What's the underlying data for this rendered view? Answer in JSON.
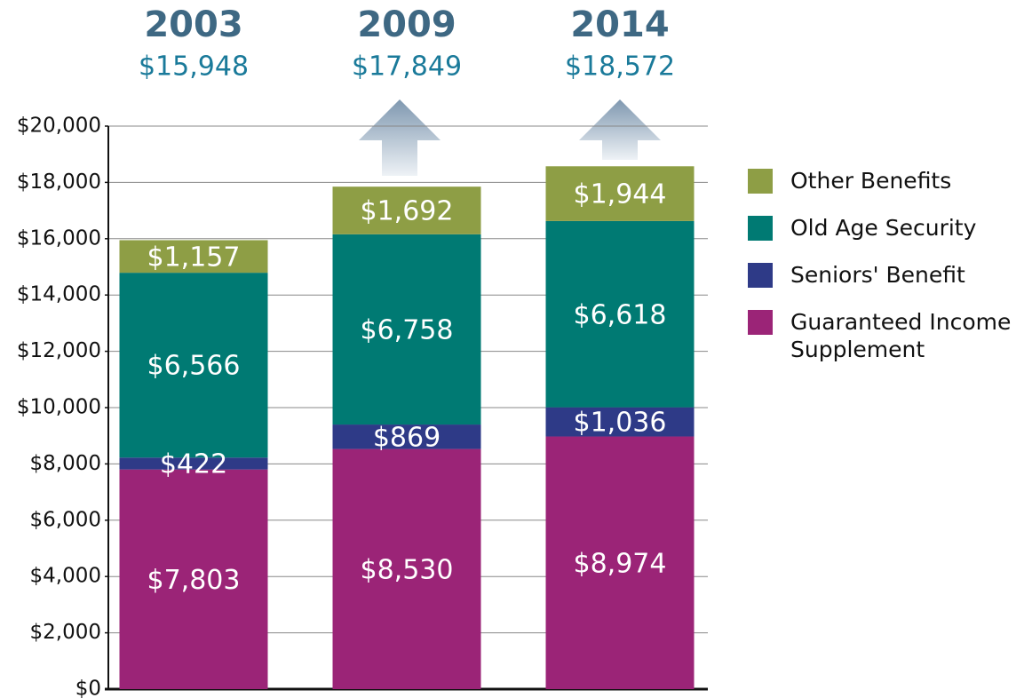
{
  "chart_data": {
    "type": "stacked_bar",
    "categories": [
      "2003",
      "2009",
      "2014"
    ],
    "totals": [
      15948,
      17849,
      18572
    ],
    "total_labels": [
      "$15,948",
      "$17,849",
      "$18,572"
    ],
    "series": [
      {
        "name": "Guaranteed Income Supplement",
        "color": "#9b2477",
        "values": [
          7803,
          8530,
          8974
        ],
        "value_labels": [
          "$7,803",
          "$8,530",
          "$8,974"
        ]
      },
      {
        "name": "Seniors' Benefit",
        "color": "#2e3a87",
        "values": [
          422,
          869,
          1036
        ],
        "value_labels": [
          "$422",
          "$869",
          "$1,036"
        ]
      },
      {
        "name": "Old Age Security",
        "color": "#007a73",
        "values": [
          6566,
          6758,
          6618
        ],
        "value_labels": [
          "$6,566",
          "$6,758",
          "$6,618"
        ]
      },
      {
        "name": "Other Benefits",
        "color": "#8e9e45",
        "values": [
          1157,
          1692,
          1944
        ],
        "value_labels": [
          "$1,157",
          "$1,692",
          "$1,944"
        ]
      }
    ],
    "ylim": [
      0,
      20000
    ],
    "yticks": [
      {
        "value": 0,
        "label": "$0"
      },
      {
        "value": 2000,
        "label": "$2,000"
      },
      {
        "value": 4000,
        "label": "$4,000"
      },
      {
        "value": 6000,
        "label": "$6,000"
      },
      {
        "value": 8000,
        "label": "$8,000"
      },
      {
        "value": 10000,
        "label": "$10,000"
      },
      {
        "value": 12000,
        "label": "$12,000"
      },
      {
        "value": 14000,
        "label": "$14,000"
      },
      {
        "value": 16000,
        "label": "$16,000"
      },
      {
        "value": 18000,
        "label": "$18,000"
      },
      {
        "value": 20000,
        "label": "$20,000"
      }
    ],
    "grid": true,
    "legend": "right"
  }
}
